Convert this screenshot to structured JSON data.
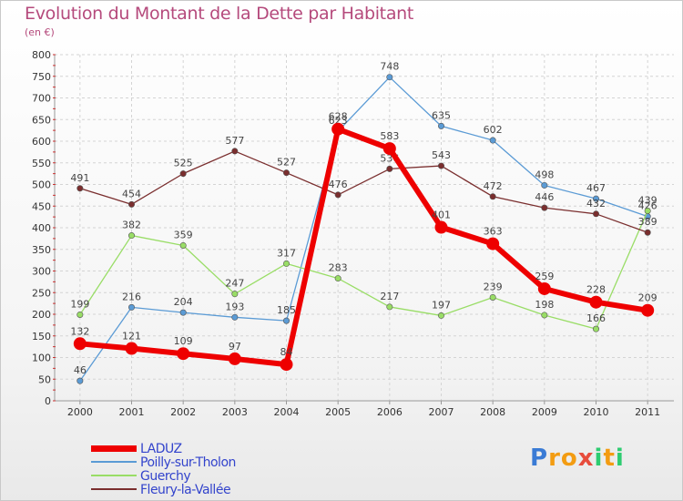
{
  "title": "Evolution du Montant de la Dette par Habitant",
  "unit": "(en €)",
  "logo": {
    "letters": [
      "P",
      "r",
      "o",
      "x",
      "i",
      "t",
      "i"
    ],
    "colors": [
      "#3a7bd5",
      "#f39c12",
      "#f39c12",
      "#e74c3c",
      "#2ecc71",
      "#f39c12",
      "#2ecc71"
    ]
  },
  "chart_data": {
    "type": "line",
    "x": [
      "2000",
      "2001",
      "2002",
      "2003",
      "2004",
      "2005",
      "2006",
      "2007",
      "2008",
      "2009",
      "2010",
      "2011"
    ],
    "ylim": [
      0,
      800
    ],
    "yticks": [
      0,
      50,
      100,
      150,
      200,
      250,
      300,
      350,
      400,
      450,
      500,
      550,
      600,
      650,
      700,
      750,
      800
    ],
    "grid": true,
    "legend": "bottom-left",
    "series": [
      {
        "name": "LADUZ",
        "color": "#ee0000",
        "values": [
          132,
          121,
          109,
          97,
          84,
          628,
          583,
          401,
          363,
          259,
          228,
          209
        ]
      },
      {
        "name": "Poilly-sur-Tholon",
        "color": "#5b9bd5",
        "values": [
          46,
          216,
          204,
          193,
          185,
          623,
          748,
          635,
          602,
          498,
          467,
          426
        ]
      },
      {
        "name": "Guerchy",
        "color": "#99dd66",
        "values": [
          199,
          382,
          359,
          247,
          317,
          283,
          217,
          197,
          239,
          198,
          166,
          439
        ]
      },
      {
        "name": "Fleury-la-Vallée",
        "color": "#7a2e2e",
        "values": [
          491,
          454,
          525,
          577,
          527,
          476,
          536,
          543,
          472,
          446,
          432,
          389
        ]
      }
    ]
  }
}
